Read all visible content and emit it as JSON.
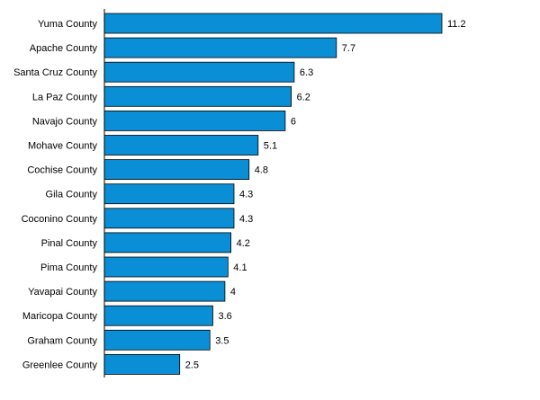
{
  "chart_data": {
    "type": "bar",
    "orientation": "horizontal",
    "categories": [
      "Yuma County",
      "Apache County",
      "Santa Cruz County",
      "La Paz County",
      "Navajo County",
      "Mohave County",
      "Cochise County",
      "Gila County",
      "Coconino County",
      "Pinal County",
      "Pima County",
      "Yavapai County",
      "Maricopa County",
      "Graham County",
      "Greenlee County"
    ],
    "values": [
      11.2,
      7.7,
      6.3,
      6.2,
      6,
      5.1,
      4.8,
      4.3,
      4.3,
      4.2,
      4.1,
      4,
      3.6,
      3.5,
      2.5
    ],
    "value_labels": [
      "11.2",
      "7.7",
      "6.3",
      "6.2",
      "6",
      "5.1",
      "4.8",
      "4.3",
      "4.3",
      "4.2",
      "4.1",
      "4",
      "3.6",
      "3.5",
      "2.5"
    ],
    "title": "",
    "xlabel": "",
    "ylabel": "",
    "xlim": [
      0,
      11.2
    ],
    "grid": false,
    "legend": "none",
    "data_labels": "outside-end",
    "colors": {
      "bar_fill": "#0a8fd6",
      "bar_stroke": "#000000",
      "axis": "#000000",
      "text": "#000000"
    }
  }
}
